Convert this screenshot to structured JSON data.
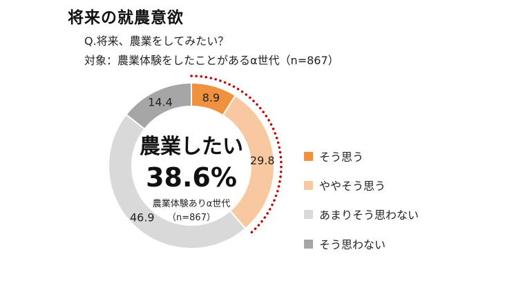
{
  "header": {
    "title": "将来の就農意欲",
    "question": "Q.将来、農業をしてみたい？",
    "target": "対象：農業体験をしたことがあるα世代（n=867）"
  },
  "center": {
    "headline": "農業したい",
    "percent": "38.6%",
    "sub1": "農業体験ありα世代",
    "sub2": "（n=867）"
  },
  "colors": {
    "strong_yes": "#F0913F",
    "somewhat_yes": "#F8C9A0",
    "not_much": "#D9D9D9",
    "no": "#A6A6A6",
    "dotted_arc": "#C00000"
  },
  "chart_data": {
    "type": "pie",
    "donut": true,
    "title": "将来の就農意欲",
    "categories": [
      "そう思う",
      "ややそう思う",
      "あまりそう思わない",
      "そう思わない"
    ],
    "values": [
      8.9,
      29.8,
      46.9,
      14.4
    ],
    "value_labels": [
      "8.9",
      "29.8",
      "46.9",
      "14.4"
    ],
    "legend_position": "right",
    "highlight": {
      "label": "農業したい",
      "value": 38.6,
      "covers": [
        "そう思う",
        "ややそう思う"
      ]
    }
  }
}
